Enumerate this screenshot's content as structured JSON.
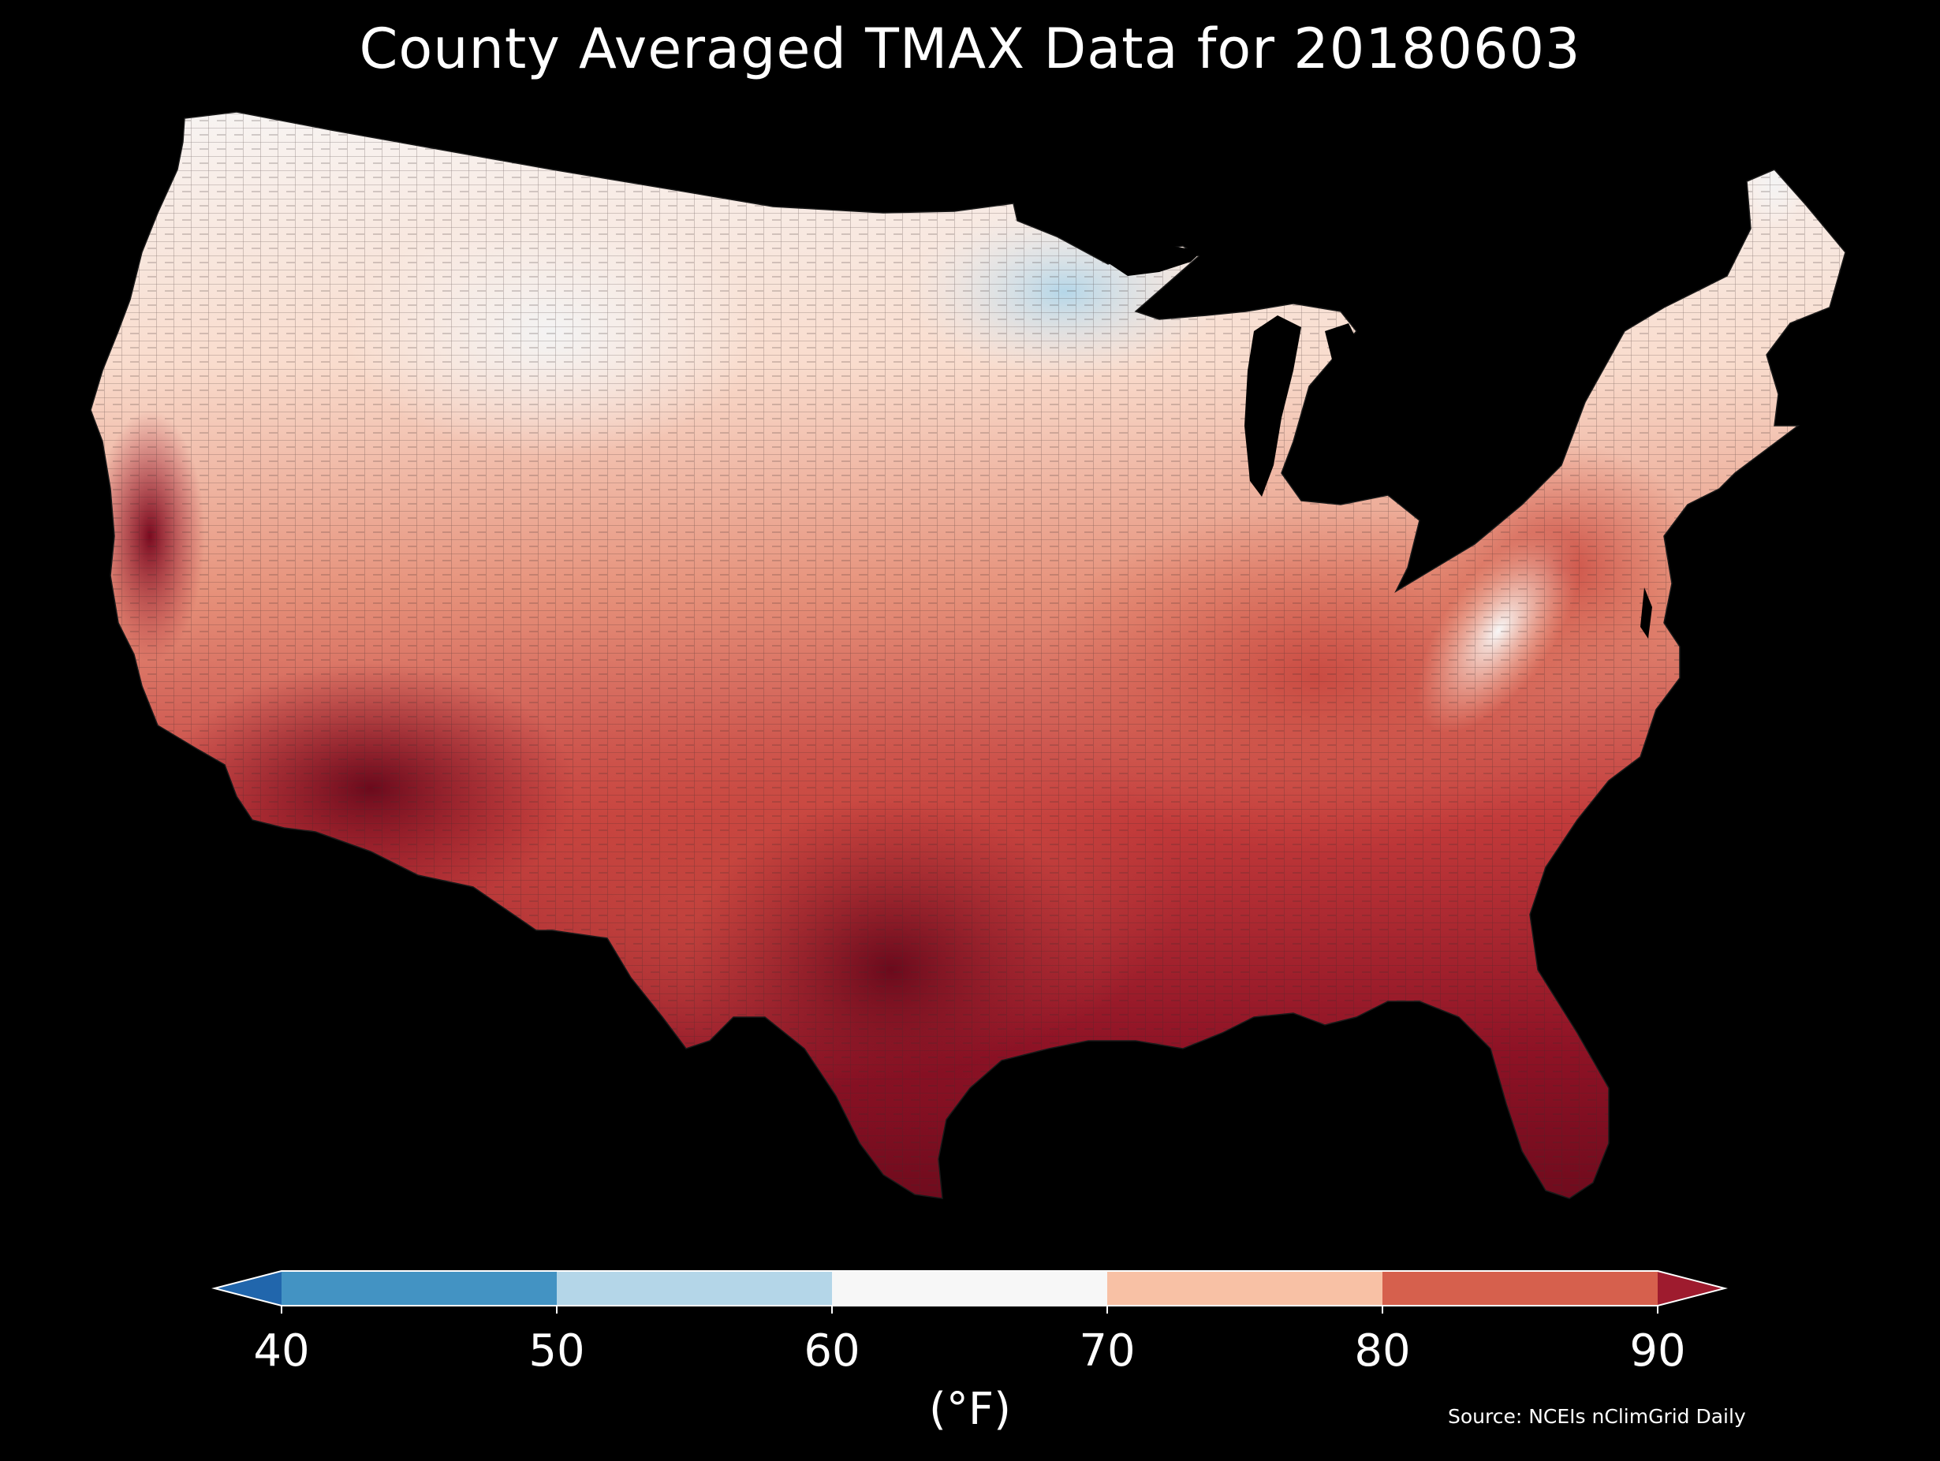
{
  "title": "County Averaged TMAX Data for 20180603",
  "source": "Source: NCEIs nClimGrid Daily",
  "colorbar": {
    "unit_label": "(°F)",
    "ticks": [
      "40",
      "50",
      "60",
      "70",
      "80",
      "90"
    ],
    "bins": [
      {
        "from": null,
        "to": 40,
        "color": "#2166ac"
      },
      {
        "from": 40,
        "to": 50,
        "color": "#4393c3"
      },
      {
        "from": 50,
        "to": 60,
        "color": "#b4d6e8"
      },
      {
        "from": 60,
        "to": 70,
        "color": "#f7f7f7"
      },
      {
        "from": 70,
        "to": 80,
        "color": "#f8c1a5"
      },
      {
        "from": 80,
        "to": 90,
        "color": "#d6604d"
      },
      {
        "from": 90,
        "to": null,
        "color": "#9e1b2e"
      }
    ],
    "extend": "both"
  },
  "map": {
    "projection": "Lambert Conformal Conic",
    "region": "Contiguous United States",
    "variable": "TMAX",
    "background": "#000000",
    "county_border_color": "#2a2a2a"
  }
}
